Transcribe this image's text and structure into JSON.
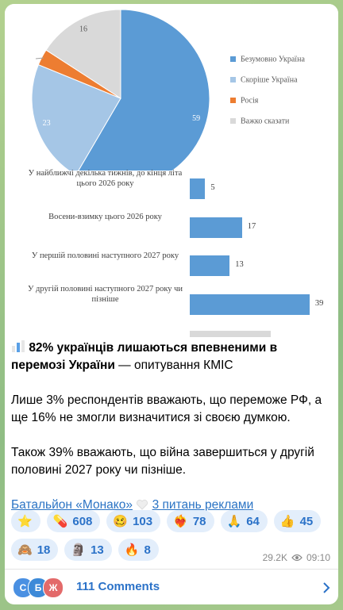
{
  "chart_image": {
    "pie": {
      "slices": [
        {
          "name": "Безумовно Україна",
          "color": "#5b9bd5",
          "value": 59,
          "label_color": "#ffffff"
        },
        {
          "name": "Скоріше Україна",
          "color": "#a5c6e6",
          "value": 23,
          "label_color": "#ffffff"
        },
        {
          "name": "Росія",
          "color": "#ed7d31",
          "value": 3,
          "label_color": "#ffffff"
        },
        {
          "name": "Важко сказати",
          "color": "#d9d9d9",
          "value": 16,
          "label_color": "#595959"
        }
      ]
    },
    "bars": {
      "color": "#5b9bd5",
      "categories": [
        "У найближчі декілька тижнів, до кінця літа цього 2026 року",
        "Восени-взимку цього 2026 року",
        "У першій половині наступного 2027 року",
        "У другій половині наступного 2027 року чи пізніше"
      ],
      "values": [
        5,
        17,
        13,
        39
      ]
    }
  },
  "post": {
    "headline_bold": "82% українців лишаються впевненими в перемозі України",
    "headline_rest": "— опитування КМІС",
    "paragraphs": [
      "Лише 3% респондентів вважають, що переможе РФ, а ще 16% не змогли визначитися зі своєю думкою.",
      "Також 39% вважають, що війна завершиться у другій половині 2027 року чи пізніше."
    ],
    "channel_link": "Батальйон «Монако»",
    "ads_link": "3 питань реклами",
    "reactions": [
      {
        "emoji": "⭐"
      },
      {
        "emoji": "💊",
        "count": "608"
      },
      {
        "emoji": "🥴",
        "count": "103"
      },
      {
        "emoji": "❤️‍🔥",
        "count": "78"
      },
      {
        "emoji": "🙏",
        "count": "64"
      },
      {
        "emoji": "👍",
        "count": "45"
      },
      {
        "emoji": "🙈",
        "count": "18"
      },
      {
        "emoji": "🗿",
        "count": "13"
      },
      {
        "emoji": "🔥",
        "count": "8"
      }
    ],
    "views": "29.2K",
    "time": "09:10",
    "comment_avatars": [
      "С",
      "Б",
      "Ж"
    ],
    "comments": "111 Comments"
  }
}
